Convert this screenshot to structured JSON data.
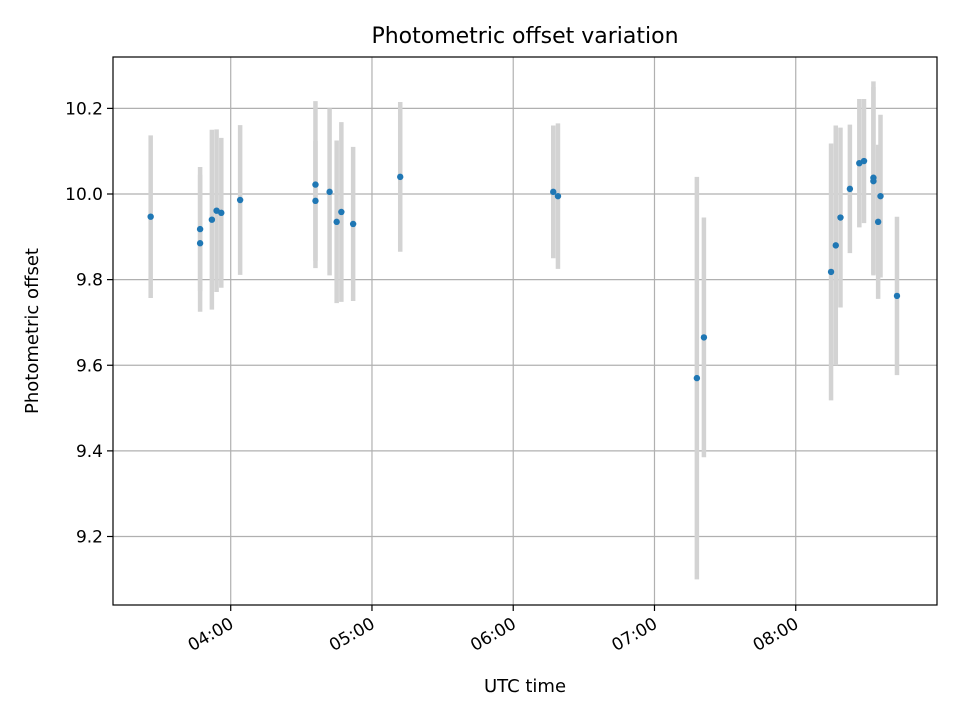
{
  "chart_data": {
    "type": "scatter",
    "title": "Photometric offset variation",
    "xlabel": "UTC time",
    "ylabel": "Photometric offset",
    "x_tick_labels": [
      "04:00",
      "05:00",
      "06:00",
      "07:00",
      "08:00"
    ],
    "x_ticks": [
      "04:00",
      "05:00",
      "06:00",
      "07:00",
      "08:00"
    ],
    "y_ticks": [
      9.2,
      9.4,
      9.6,
      9.8,
      10.0,
      10.2
    ],
    "y_tick_labels": [
      "9.2",
      "9.4",
      "9.6",
      "9.8",
      "10.0",
      "10.2"
    ],
    "xlim": [
      "03:10",
      "09:00"
    ],
    "ylim": [
      9.04,
      10.32
    ],
    "grid": true,
    "colors": {
      "point": "#1f77b4",
      "errorbar": "#d3d3d3",
      "grid": "#b0b0b0"
    },
    "series": [
      {
        "x": [
          "03:26",
          "03:47",
          "03:47",
          "03:52",
          "03:54",
          "03:56",
          "04:04",
          "04:36",
          "04:36",
          "04:42",
          "04:45",
          "04:47",
          "04:52",
          "05:12",
          "06:17",
          "06:19",
          "07:18",
          "07:21",
          "08:15",
          "08:17",
          "08:19",
          "08:23",
          "08:27",
          "08:29",
          "08:33",
          "08:33",
          "08:35",
          "08:36",
          "08:43"
        ],
        "y": [
          9.947,
          9.918,
          9.885,
          9.94,
          9.961,
          9.956,
          9.986,
          10.022,
          9.984,
          10.005,
          9.935,
          9.958,
          9.93,
          10.04,
          10.005,
          9.995,
          9.57,
          9.665,
          9.818,
          9.88,
          9.945,
          10.012,
          10.072,
          10.077,
          10.038,
          10.03,
          9.935,
          9.995,
          9.762
        ],
        "yerr": [
          0.19,
          0.145,
          0.16,
          0.21,
          0.19,
          0.175,
          0.175,
          0.195,
          0.14,
          0.195,
          0.19,
          0.21,
          0.18,
          0.175,
          0.155,
          0.17,
          0.47,
          0.28,
          0.3,
          0.28,
          0.21,
          0.15,
          0.15,
          0.145,
          0.225,
          0.22,
          0.18,
          0.19,
          0.185
        ]
      }
    ]
  }
}
